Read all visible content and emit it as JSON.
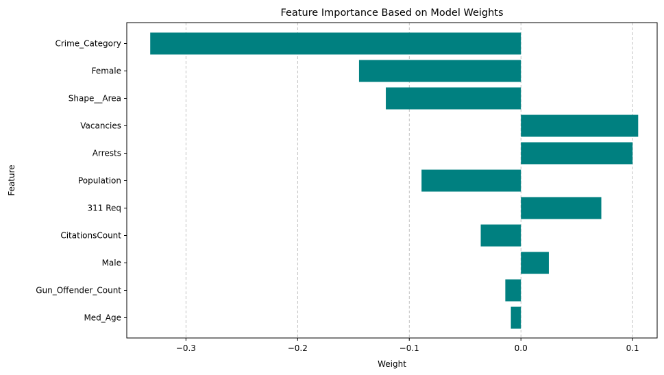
{
  "chart_data": {
    "type": "bar",
    "orientation": "horizontal",
    "title": "Feature Importance Based on Model Weights",
    "xlabel": "Weight",
    "ylabel": "Feature",
    "categories": [
      "Crime_Category",
      "Female",
      "Shape__Area",
      "Vacancies",
      "Arrests",
      "Population",
      "311 Req",
      "CitationsCount",
      "Male",
      "Gun_Offender_Count",
      "Med_Age"
    ],
    "values": [
      -0.332,
      -0.145,
      -0.121,
      0.105,
      0.1,
      -0.089,
      0.072,
      -0.036,
      0.025,
      -0.014,
      -0.009
    ],
    "xlim": [
      -0.353,
      0.122
    ],
    "xticks": [
      -0.3,
      -0.2,
      -0.1,
      0.0,
      0.1
    ],
    "xtick_labels": [
      "−0.3",
      "−0.2",
      "−0.1",
      "0.0",
      "0.1"
    ],
    "grid": "x-dashed",
    "bar_color": "#008080"
  }
}
